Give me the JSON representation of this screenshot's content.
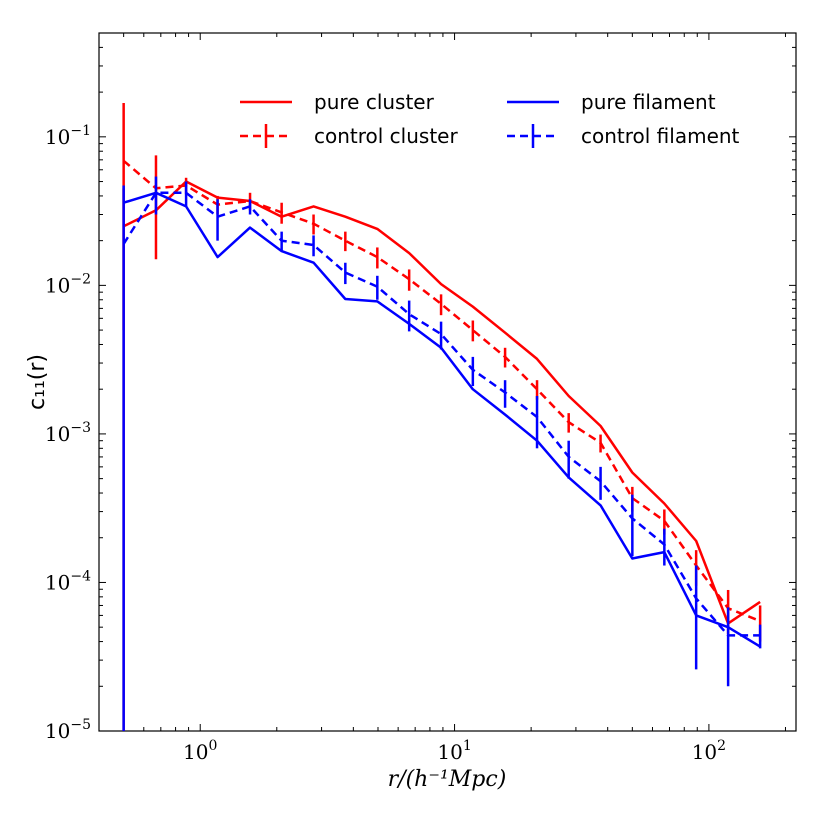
{
  "chart_data": {
    "type": "line",
    "xscale": "log",
    "yscale": "log",
    "xlim": [
      0.4,
      220
    ],
    "ylim": [
      1e-05,
      0.5
    ],
    "xlabel": "r/(h⁻¹Mpc)",
    "ylabel": "c₁₁(r)",
    "x_ticks": [
      {
        "value": 1,
        "base": "10",
        "exp": "0"
      },
      {
        "value": 10,
        "base": "10",
        "exp": "1"
      },
      {
        "value": 100,
        "base": "10",
        "exp": "2"
      }
    ],
    "y_ticks": [
      {
        "value": 1e-05,
        "base": "10",
        "exp": "−5"
      },
      {
        "value": 0.0001,
        "base": "10",
        "exp": "−4"
      },
      {
        "value": 0.001,
        "base": "10",
        "exp": "−3"
      },
      {
        "value": 0.01,
        "base": "10",
        "exp": "−2"
      },
      {
        "value": 0.1,
        "base": "10",
        "exp": "−1"
      }
    ],
    "legend_position": "top-right",
    "series": [
      {
        "name": "pure cluster",
        "color": "#ff0000",
        "style": "solid",
        "x": [
          0.5,
          0.67,
          0.88,
          1.17,
          1.57,
          2.09,
          2.79,
          3.72,
          4.97,
          6.63,
          8.85,
          11.8,
          15.8,
          21.1,
          28.1,
          37.5,
          50.0,
          66.8,
          89.1,
          119,
          159
        ],
        "y": [
          0.025,
          0.032,
          0.05,
          0.039,
          0.037,
          0.029,
          0.034,
          0.029,
          0.024,
          0.0165,
          0.0102,
          0.0072,
          0.0048,
          0.0032,
          0.0018,
          0.00113,
          0.00055,
          0.00034,
          0.00019,
          5.3e-05,
          7.4e-05
        ],
        "yerr": [
          0.02,
          0.0,
          0.0,
          0.0,
          0.0,
          0.0,
          0.0,
          0.0,
          0.0,
          0.0,
          0.0,
          0.0,
          0.0,
          0.0,
          0.0,
          0.0,
          0.0,
          0.0,
          0.0,
          0.0,
          0.0
        ]
      },
      {
        "name": "control cluster",
        "color": "#ff0000",
        "style": "dashed",
        "x": [
          0.5,
          0.67,
          0.88,
          1.17,
          1.57,
          2.09,
          2.79,
          3.72,
          4.97,
          6.63,
          8.85,
          11.8,
          15.8,
          21.1,
          28.1,
          37.5,
          50.0,
          66.8,
          89.1,
          119,
          159
        ],
        "y": [
          0.069,
          0.045,
          0.047,
          0.035,
          0.037,
          0.031,
          0.026,
          0.02,
          0.0155,
          0.011,
          0.0075,
          0.005,
          0.0033,
          0.002,
          0.0012,
          0.00087,
          0.00037,
          0.00026,
          0.00013,
          6.7e-05,
          5.5e-05
        ],
        "yerr": [
          0.1,
          0.03,
          0.006,
          0.005,
          0.005,
          0.005,
          0.004,
          0.003,
          0.0025,
          0.0018,
          0.0012,
          0.0008,
          0.0005,
          0.0003,
          0.00018,
          0.00012,
          7e-05,
          5e-05,
          3.5e-05,
          2.2e-05,
          1.5e-05
        ]
      },
      {
        "name": "pure filament",
        "color": "#0000ff",
        "style": "solid",
        "x": [
          0.5,
          0.67,
          0.88,
          1.17,
          1.57,
          2.09,
          2.79,
          3.72,
          4.97,
          6.63,
          8.85,
          11.8,
          15.8,
          21.1,
          28.1,
          37.5,
          50.0,
          66.8,
          89.1,
          119,
          159
        ],
        "y": [
          0.036,
          0.042,
          0.034,
          0.0155,
          0.0245,
          0.017,
          0.0142,
          0.0081,
          0.0078,
          0.0055,
          0.0038,
          0.002,
          0.00135,
          0.0009,
          0.00051,
          0.00033,
          0.000145,
          0.00016,
          6e-05,
          5e-05,
          3.7e-05
        ],
        "yerr": [
          0.0,
          0.0,
          0.0,
          0.0,
          0.0,
          0.0,
          0.0,
          0.0,
          0.0,
          0.0,
          0.0,
          0.0,
          0.0,
          0.0,
          0.0,
          0.0,
          0.0,
          0.0,
          0.0,
          0.0,
          0.0
        ]
      },
      {
        "name": "control filament",
        "color": "#0000ff",
        "style": "dashed",
        "x": [
          0.5,
          0.67,
          0.88,
          1.17,
          1.57,
          2.09,
          2.79,
          3.72,
          4.97,
          6.63,
          8.85,
          11.8,
          15.8,
          21.1,
          28.1,
          37.5,
          50.0,
          66.8,
          89.1,
          119,
          159
        ],
        "y": [
          0.019,
          0.042,
          0.042,
          0.029,
          0.034,
          0.02,
          0.0187,
          0.0122,
          0.0098,
          0.0064,
          0.0047,
          0.0027,
          0.0019,
          0.0013,
          0.0007,
          0.00048,
          0.00027,
          0.00018,
          7.8e-05,
          4.4e-05,
          4.4e-05
        ],
        "yerr": [
          0.028,
          0.012,
          0.008,
          0.009,
          0.004,
          0.003,
          0.003,
          0.002,
          0.0018,
          0.0015,
          0.001,
          0.0006,
          0.0004,
          0.0005,
          0.0002,
          0.00012,
          0.00012,
          5e-05,
          5.2e-05,
          2.4e-05,
          8e-06
        ]
      }
    ]
  }
}
